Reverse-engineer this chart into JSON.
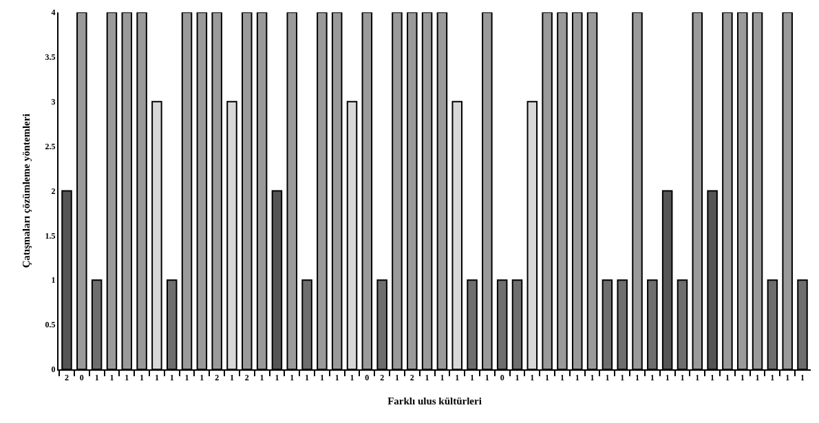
{
  "chart_data": {
    "type": "bar",
    "xlabel": "Farklı ulus kültürleri",
    "ylabel": "Çatışmaları çözümleme yöntemleri",
    "categories": [
      "2",
      "0",
      "1",
      "1",
      "1",
      "1",
      "1",
      "1",
      "1",
      "1",
      "2",
      "1",
      "2",
      "1",
      "1",
      "1",
      "1",
      "1",
      "1",
      "1",
      "0",
      "2",
      "1",
      "2",
      "1",
      "1",
      "1",
      "1",
      "1",
      "0",
      "1",
      "1",
      "1",
      "1",
      "1",
      "1",
      "1",
      "1",
      "1",
      "1",
      "1",
      "1",
      "1",
      "1",
      "1",
      "1",
      "1",
      "1",
      "1",
      "1"
    ],
    "values": [
      2,
      4,
      1,
      4,
      4,
      4,
      3,
      1,
      4,
      4,
      4,
      3,
      4,
      4,
      2,
      4,
      1,
      4,
      4,
      3,
      4,
      1,
      4,
      4,
      4,
      4,
      3,
      1,
      4,
      1,
      1,
      3,
      4,
      4,
      4,
      4,
      1,
      1,
      4,
      1,
      2,
      1,
      4,
      2,
      4,
      4,
      4,
      1,
      4,
      1
    ],
    "colors": [
      "#555555",
      "#9a9a9a",
      "#6e6e6e",
      "#9a9a9a",
      "#9a9a9a",
      "#9a9a9a",
      "#d8d8d8",
      "#6e6e6e",
      "#9a9a9a",
      "#9a9a9a",
      "#9a9a9a",
      "#d8d8d8",
      "#9a9a9a",
      "#9a9a9a",
      "#555555",
      "#9a9a9a",
      "#6e6e6e",
      "#9a9a9a",
      "#9a9a9a",
      "#d8d8d8",
      "#9a9a9a",
      "#6e6e6e",
      "#9a9a9a",
      "#9a9a9a",
      "#9a9a9a",
      "#9a9a9a",
      "#d8d8d8",
      "#6e6e6e",
      "#9a9a9a",
      "#6e6e6e",
      "#6e6e6e",
      "#d8d8d8",
      "#9a9a9a",
      "#9a9a9a",
      "#9a9a9a",
      "#9a9a9a",
      "#6e6e6e",
      "#6e6e6e",
      "#9a9a9a",
      "#6e6e6e",
      "#555555",
      "#6e6e6e",
      "#9a9a9a",
      "#555555",
      "#9a9a9a",
      "#9a9a9a",
      "#9a9a9a",
      "#6e6e6e",
      "#9a9a9a",
      "#6e6e6e"
    ],
    "ylim": [
      0,
      4
    ],
    "yticks": [
      0,
      0.5,
      1,
      1.5,
      2,
      2.5,
      3,
      3.5,
      4
    ],
    "grid": false,
    "legend": false
  }
}
